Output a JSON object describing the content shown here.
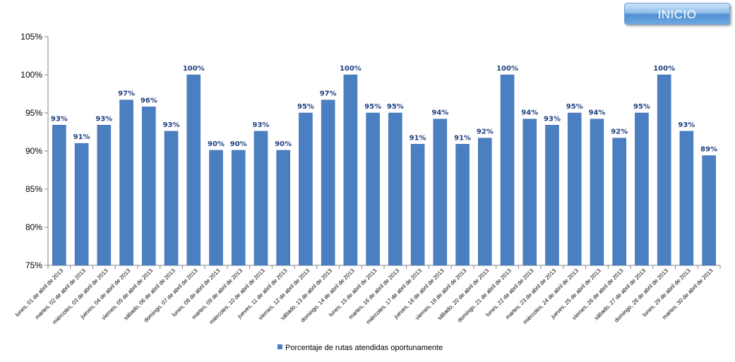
{
  "header": {
    "inicio_label": "INICIO"
  },
  "chart_data": {
    "type": "bar",
    "title": "",
    "xlabel": "",
    "ylabel": "",
    "ylim": [
      75,
      105
    ],
    "yticks": [
      "75%",
      "80%",
      "85%",
      "90%",
      "95%",
      "100%",
      "105%"
    ],
    "grid": false,
    "legend_position": "bottom",
    "bar_color": "#4a7fc1",
    "categories": [
      "lunes, 01 de abril de 2013",
      "martes, 02 de abril de 2013",
      "miércoles, 03 de abril de 2013",
      "jueves, 04 de abril de 2013",
      "viernes, 05 de abril de 2013",
      "sábado, 06 de abril de 2013",
      "domingo, 07 de abril de 2013",
      "lunes, 08 de abril de 2013",
      "martes, 09 de abril de 2013",
      "miércoles, 10 de abril de 2013",
      "jueves, 11 de abril de 2013",
      "viernes, 12 de abril de 2013",
      "sábado, 13 de abril de 2013",
      "domingo, 14 de abril de 2013",
      "lunes, 15 de abril de 2013",
      "martes, 16 de abril de 2013",
      "miércoles, 17 de abril de 2013",
      "jueves, 18 de abril de 2013",
      "viernes, 19 de abril de 2013",
      "sábado, 20 de abril de 2013",
      "domingo, 21 de abril de 2013",
      "lunes, 22 de abril de 2013",
      "martes, 23 de abril de 2013",
      "miércoles, 24 de abril de 2013",
      "jueves, 25 de abril de 2013",
      "viernes, 26 de abril de 2013",
      "sábado, 27 de abril de 2013",
      "domingo, 28 de abril de 2013",
      "lunes, 29 de abril de 2013",
      "martes, 30 de abril de 2013"
    ],
    "series": [
      {
        "name": "Porcentaje de rutas atendidas oportunamente",
        "values": [
          93.4,
          91.0,
          93.4,
          96.7,
          95.8,
          92.6,
          100,
          90.1,
          90.1,
          92.6,
          90.1,
          95.0,
          96.7,
          100,
          95.0,
          95.0,
          90.9,
          94.2,
          90.9,
          91.7,
          100,
          94.2,
          93.4,
          95.0,
          94.2,
          91.7,
          95.0,
          100,
          92.6,
          89.4
        ],
        "labels": [
          "93%",
          "91%",
          "93%",
          "97%",
          "96%",
          "93%",
          "100%",
          "90%",
          "90%",
          "93%",
          "90%",
          "95%",
          "97%",
          "100%",
          "95%",
          "95%",
          "91%",
          "94%",
          "91%",
          "92%",
          "100%",
          "94%",
          "93%",
          "95%",
          "94%",
          "92%",
          "95%",
          "100%",
          "93%",
          "89%"
        ]
      }
    ]
  }
}
